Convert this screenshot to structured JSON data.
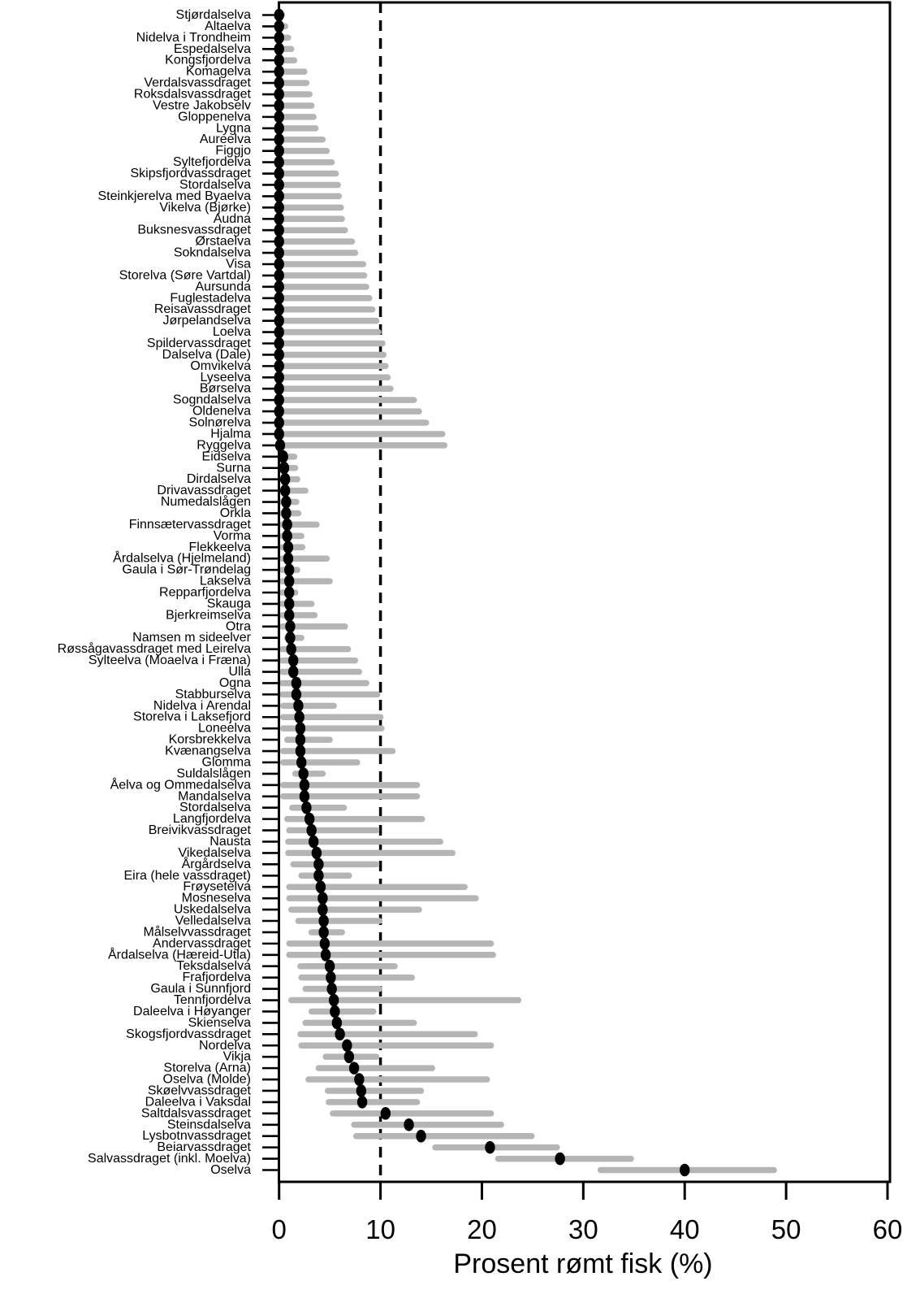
{
  "chart_data": {
    "type": "scatter",
    "subtype": "dot-with-error-bars",
    "title": "",
    "xlabel": "Prosent rømt fisk (%)",
    "ylabel": "",
    "xlim": [
      0,
      60
    ],
    "grid": false,
    "legend": "none",
    "reference_line_x": 10,
    "xticks": [
      {
        "label": "0",
        "value": 0
      },
      {
        "label": "10",
        "value": 10
      },
      {
        "label": "20",
        "value": 20
      },
      {
        "label": "30",
        "value": 30
      },
      {
        "label": "40",
        "value": 40
      },
      {
        "label": "50",
        "value": 50
      },
      {
        "label": "60",
        "value": 60
      }
    ],
    "colors": {
      "point": "#000000",
      "ci_bar": "#b5b5b5",
      "reference_line": "#000000",
      "axis": "#000000",
      "background": "#ffffff"
    },
    "rows": [
      {
        "label": "Stjørdalselva",
        "est": 0.0,
        "lo": 0.0,
        "hi": 0.5
      },
      {
        "label": "Altaelva",
        "est": 0.0,
        "lo": 0.0,
        "hi": 0.9
      },
      {
        "label": "Nidelva i Trondheim",
        "est": 0.0,
        "lo": 0.0,
        "hi": 1.2
      },
      {
        "label": "Espedalselva",
        "est": 0.0,
        "lo": 0.0,
        "hi": 1.5
      },
      {
        "label": "Kongsfjordelva",
        "est": 0.0,
        "lo": 0.0,
        "hi": 1.8
      },
      {
        "label": "Komagelva",
        "est": 0.0,
        "lo": 0.0,
        "hi": 2.8
      },
      {
        "label": "Verdalsvassdraget",
        "est": 0.0,
        "lo": 0.0,
        "hi": 3.0
      },
      {
        "label": "Roksdalsvassdraget",
        "est": 0.0,
        "lo": 0.0,
        "hi": 3.3
      },
      {
        "label": "Vestre Jakobselv",
        "est": 0.0,
        "lo": 0.0,
        "hi": 3.5
      },
      {
        "label": "Gloppenelva",
        "est": 0.0,
        "lo": 0.0,
        "hi": 3.7
      },
      {
        "label": "Lygna",
        "est": 0.0,
        "lo": 0.0,
        "hi": 3.9
      },
      {
        "label": "Aureelva",
        "est": 0.0,
        "lo": 0.0,
        "hi": 4.6
      },
      {
        "label": "Figgjo",
        "est": 0.0,
        "lo": 0.0,
        "hi": 5.0
      },
      {
        "label": "Syltefjordelva",
        "est": 0.0,
        "lo": 0.0,
        "hi": 5.5
      },
      {
        "label": "Skipsfjordvassdraget",
        "est": 0.0,
        "lo": 0.0,
        "hi": 5.9
      },
      {
        "label": "Stordalselva",
        "est": 0.0,
        "lo": 0.0,
        "hi": 6.1
      },
      {
        "label": "Steinkjerelva med Byaelva",
        "est": 0.0,
        "lo": 0.0,
        "hi": 6.2
      },
      {
        "label": "Vikelva (Bjørke)",
        "est": 0.0,
        "lo": 0.0,
        "hi": 6.4
      },
      {
        "label": "Audna",
        "est": 0.0,
        "lo": 0.0,
        "hi": 6.5
      },
      {
        "label": "Buksnesvassdraget",
        "est": 0.0,
        "lo": 0.0,
        "hi": 6.8
      },
      {
        "label": "Ørstaelva",
        "est": 0.0,
        "lo": 0.0,
        "hi": 7.5
      },
      {
        "label": "Sokndalselva",
        "est": 0.0,
        "lo": 0.0,
        "hi": 7.8
      },
      {
        "label": "Visa",
        "est": 0.0,
        "lo": 0.0,
        "hi": 8.6
      },
      {
        "label": "Storelva (Søre Vartdal)",
        "est": 0.0,
        "lo": 0.0,
        "hi": 8.7
      },
      {
        "label": "Aursunda",
        "est": 0.0,
        "lo": 0.0,
        "hi": 8.9
      },
      {
        "label": "Fuglestadelva",
        "est": 0.0,
        "lo": 0.0,
        "hi": 9.2
      },
      {
        "label": "Reisavassdraget",
        "est": 0.0,
        "lo": 0.0,
        "hi": 9.5
      },
      {
        "label": "Jørpelandselva",
        "est": 0.0,
        "lo": 0.0,
        "hi": 9.9
      },
      {
        "label": "Loelva",
        "est": 0.0,
        "lo": 0.0,
        "hi": 10.1
      },
      {
        "label": "Spildervassdraget",
        "est": 0.0,
        "lo": 0.0,
        "hi": 10.5
      },
      {
        "label": "Dalselva (Dale)",
        "est": 0.0,
        "lo": 0.0,
        "hi": 10.6
      },
      {
        "label": "Omvikelva",
        "est": 0.0,
        "lo": 0.0,
        "hi": 10.8
      },
      {
        "label": "Lyseelva",
        "est": 0.0,
        "lo": 0.0,
        "hi": 11.0
      },
      {
        "label": "Børselva",
        "est": 0.0,
        "lo": 0.0,
        "hi": 11.3
      },
      {
        "label": "Sogndalselva",
        "est": 0.0,
        "lo": 0.0,
        "hi": 13.6
      },
      {
        "label": "Oldenelva",
        "est": 0.0,
        "lo": 0.0,
        "hi": 14.1
      },
      {
        "label": "Solnørelva",
        "est": 0.0,
        "lo": 0.0,
        "hi": 14.8
      },
      {
        "label": "Hjalma",
        "est": 0.0,
        "lo": 0.0,
        "hi": 16.4
      },
      {
        "label": "Ryggelva",
        "est": 0.1,
        "lo": 0.0,
        "hi": 16.6
      },
      {
        "label": "Eidselva",
        "est": 0.4,
        "lo": 0.0,
        "hi": 1.8
      },
      {
        "label": "Surna",
        "est": 0.5,
        "lo": 0.0,
        "hi": 1.9
      },
      {
        "label": "Dirdalselva",
        "est": 0.6,
        "lo": 0.0,
        "hi": 2.1
      },
      {
        "label": "Drivavassdraget",
        "est": 0.6,
        "lo": 0.0,
        "hi": 2.9
      },
      {
        "label": "Numedalslågen",
        "est": 0.7,
        "lo": 0.0,
        "hi": 2.0
      },
      {
        "label": "Orkla",
        "est": 0.7,
        "lo": 0.0,
        "hi": 2.2
      },
      {
        "label": "Finnsætervassdraget",
        "est": 0.8,
        "lo": 0.0,
        "hi": 4.0
      },
      {
        "label": "Vorma",
        "est": 0.8,
        "lo": 0.0,
        "hi": 2.5
      },
      {
        "label": "Flekkeelva",
        "est": 0.9,
        "lo": 0.0,
        "hi": 2.6
      },
      {
        "label": "Årdalselva (Hjelmeland)",
        "est": 0.9,
        "lo": 0.0,
        "hi": 5.0
      },
      {
        "label": "Gaula i Sør-Trøndelag",
        "est": 1.0,
        "lo": 0.0,
        "hi": 2.1
      },
      {
        "label": "Lakselva",
        "est": 1.0,
        "lo": 0.0,
        "hi": 5.3
      },
      {
        "label": "Repparfjordelva",
        "est": 1.0,
        "lo": 0.0,
        "hi": 1.9
      },
      {
        "label": "Skauga",
        "est": 1.0,
        "lo": 0.0,
        "hi": 3.5
      },
      {
        "label": "Bjerkreimselva",
        "est": 1.0,
        "lo": 0.0,
        "hi": 3.8
      },
      {
        "label": "Otra",
        "est": 1.1,
        "lo": 0.0,
        "hi": 6.8
      },
      {
        "label": "Namsen m sideelver",
        "est": 1.1,
        "lo": 0.5,
        "hi": 2.5
      },
      {
        "label": "Røssågavassdraget med Leirelva",
        "est": 1.2,
        "lo": 0.0,
        "hi": 7.1
      },
      {
        "label": "Sylteelva (Moaelva i Fræna)",
        "est": 1.4,
        "lo": 0.0,
        "hi": 7.8
      },
      {
        "label": "Ulla",
        "est": 1.4,
        "lo": 0.0,
        "hi": 8.2
      },
      {
        "label": "Ogna",
        "est": 1.7,
        "lo": 0.0,
        "hi": 8.9
      },
      {
        "label": "Stabburselva",
        "est": 1.7,
        "lo": 0.0,
        "hi": 10.0
      },
      {
        "label": "Nidelva i Arendal",
        "est": 1.9,
        "lo": 0.1,
        "hi": 5.7
      },
      {
        "label": "Storelva i Laksefjord",
        "est": 2.0,
        "lo": 0.1,
        "hi": 10.3
      },
      {
        "label": "Loneelva",
        "est": 2.1,
        "lo": 0.1,
        "hi": 10.4
      },
      {
        "label": "Korsbrekkelva",
        "est": 2.1,
        "lo": 0.5,
        "hi": 5.3
      },
      {
        "label": "Kvænangselva",
        "est": 2.1,
        "lo": 0.1,
        "hi": 11.5
      },
      {
        "label": "Glomma",
        "est": 2.2,
        "lo": 0.1,
        "hi": 8.0
      },
      {
        "label": "Suldalslågen",
        "est": 2.4,
        "lo": 1.3,
        "hi": 4.6
      },
      {
        "label": "Åelva og Ommedalselva",
        "est": 2.5,
        "lo": 0.1,
        "hi": 13.9
      },
      {
        "label": "Mandalselva",
        "est": 2.5,
        "lo": 0.1,
        "hi": 13.9
      },
      {
        "label": "Stordalselva",
        "est": 2.7,
        "lo": 1.0,
        "hi": 6.7
      },
      {
        "label": "Langfjordelva",
        "est": 3.0,
        "lo": 0.5,
        "hi": 14.4
      },
      {
        "label": "Breivikvassdraget",
        "est": 3.2,
        "lo": 0.7,
        "hi": 9.9
      },
      {
        "label": "Nausta",
        "est": 3.4,
        "lo": 0.6,
        "hi": 16.2
      },
      {
        "label": "Vikedalselva",
        "est": 3.7,
        "lo": 0.6,
        "hi": 17.4
      },
      {
        "label": "Årgårdselva",
        "est": 3.9,
        "lo": 1.1,
        "hi": 9.9
      },
      {
        "label": "Eira (hele vassdraget)",
        "est": 3.9,
        "lo": 1.9,
        "hi": 7.2
      },
      {
        "label": "Frøysetelva",
        "est": 4.1,
        "lo": 0.7,
        "hi": 18.6
      },
      {
        "label": "Mosneselva",
        "est": 4.3,
        "lo": 0.7,
        "hi": 19.7
      },
      {
        "label": "Uskedalselva",
        "est": 4.3,
        "lo": 0.9,
        "hi": 14.1
      },
      {
        "label": "Velledalselva",
        "est": 4.4,
        "lo": 1.6,
        "hi": 10.2
      },
      {
        "label": "Målselvvassdraget",
        "est": 4.4,
        "lo": 2.9,
        "hi": 6.5
      },
      {
        "label": "Andervassdraget",
        "est": 4.5,
        "lo": 0.7,
        "hi": 21.2
      },
      {
        "label": "Årdalselva (Hæreid-Utla)",
        "est": 4.6,
        "lo": 0.7,
        "hi": 21.4
      },
      {
        "label": "Teksdalselva",
        "est": 5.0,
        "lo": 1.8,
        "hi": 11.7
      },
      {
        "label": "Frafjordelva",
        "est": 5.1,
        "lo": 1.9,
        "hi": 13.4
      },
      {
        "label": "Gaula i Sunnfjord",
        "est": 5.2,
        "lo": 2.3,
        "hi": 10.2
      },
      {
        "label": "Tennfjordelva",
        "est": 5.4,
        "lo": 0.9,
        "hi": 23.9
      },
      {
        "label": "Daleelva i Høyanger",
        "est": 5.5,
        "lo": 2.9,
        "hi": 9.6
      },
      {
        "label": "Skienselva",
        "est": 5.7,
        "lo": 2.3,
        "hi": 13.6
      },
      {
        "label": "Skogsfjordvassdraget",
        "est": 6.0,
        "lo": 1.8,
        "hi": 19.6
      },
      {
        "label": "Nordelva",
        "est": 6.7,
        "lo": 1.9,
        "hi": 21.2
      },
      {
        "label": "Vikja",
        "est": 6.9,
        "lo": 4.3,
        "hi": 9.9
      },
      {
        "label": "Storelva (Arna)",
        "est": 7.4,
        "lo": 3.6,
        "hi": 15.4
      },
      {
        "label": "Oselva (Molde)",
        "est": 7.9,
        "lo": 2.6,
        "hi": 20.8
      },
      {
        "label": "Skøelvvassdraget",
        "est": 8.1,
        "lo": 4.5,
        "hi": 14.3
      },
      {
        "label": "Daleelva i Vaksdal",
        "est": 8.2,
        "lo": 4.6,
        "hi": 13.9
      },
      {
        "label": "Saltdalsvassdraget",
        "est": 10.5,
        "lo": 5.0,
        "hi": 21.2
      },
      {
        "label": "Steinsdalselva",
        "est": 12.8,
        "lo": 7.1,
        "hi": 22.2
      },
      {
        "label": "Lysbotnvassdraget",
        "est": 14.0,
        "lo": 7.3,
        "hi": 25.2
      },
      {
        "label": "Beiarvassdraget",
        "est": 20.8,
        "lo": 15.1,
        "hi": 27.7
      },
      {
        "label": "Salvassdraget (inkl. Moelva)",
        "est": 27.7,
        "lo": 21.3,
        "hi": 35.0
      },
      {
        "label": "Oselva",
        "est": 40.0,
        "lo": 31.4,
        "hi": 49.1
      }
    ]
  }
}
